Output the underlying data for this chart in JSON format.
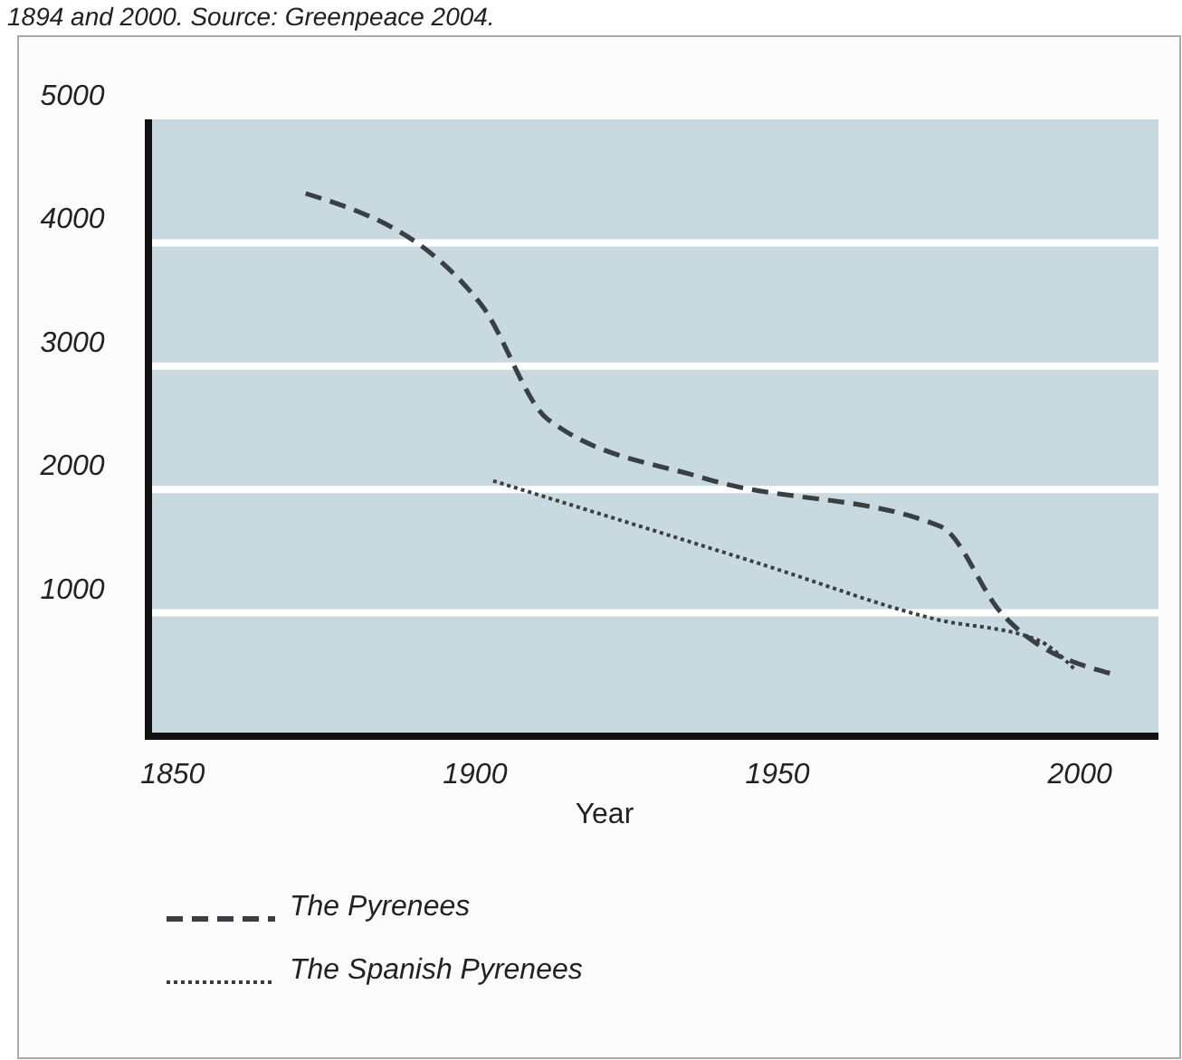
{
  "chart_data": {
    "type": "line",
    "xlabel": "Year",
    "annotations": [
      "1894 and 2000. Source: Greenpeace 2004."
    ],
    "xlim": [
      1846,
      2013
    ],
    "xticks": [
      1850,
      1900,
      1950,
      2000
    ],
    "ylim": [
      0,
      5000
    ],
    "yticks": [
      1000,
      2000,
      3000,
      4000,
      5000
    ],
    "grid": "y",
    "legend": "bottom left",
    "series": [
      {
        "name": "The Pyrenees",
        "color": "#3a3f44",
        "line_style": "dashed",
        "x": [
          1872,
          1901,
          1912,
          1938,
          1977,
          1987,
          2005
        ],
        "values": [
          4400,
          3500,
          2570,
          2090,
          1700,
          1000,
          510
        ]
      },
      {
        "name": "The Spanish Pyrenees",
        "color": "#3a3f44",
        "line_style": "dotted",
        "x": [
          1903,
          1947,
          1976,
          1993,
          1999
        ],
        "values": [
          2070,
          1400,
          950,
          780,
          550
        ]
      }
    ]
  }
}
